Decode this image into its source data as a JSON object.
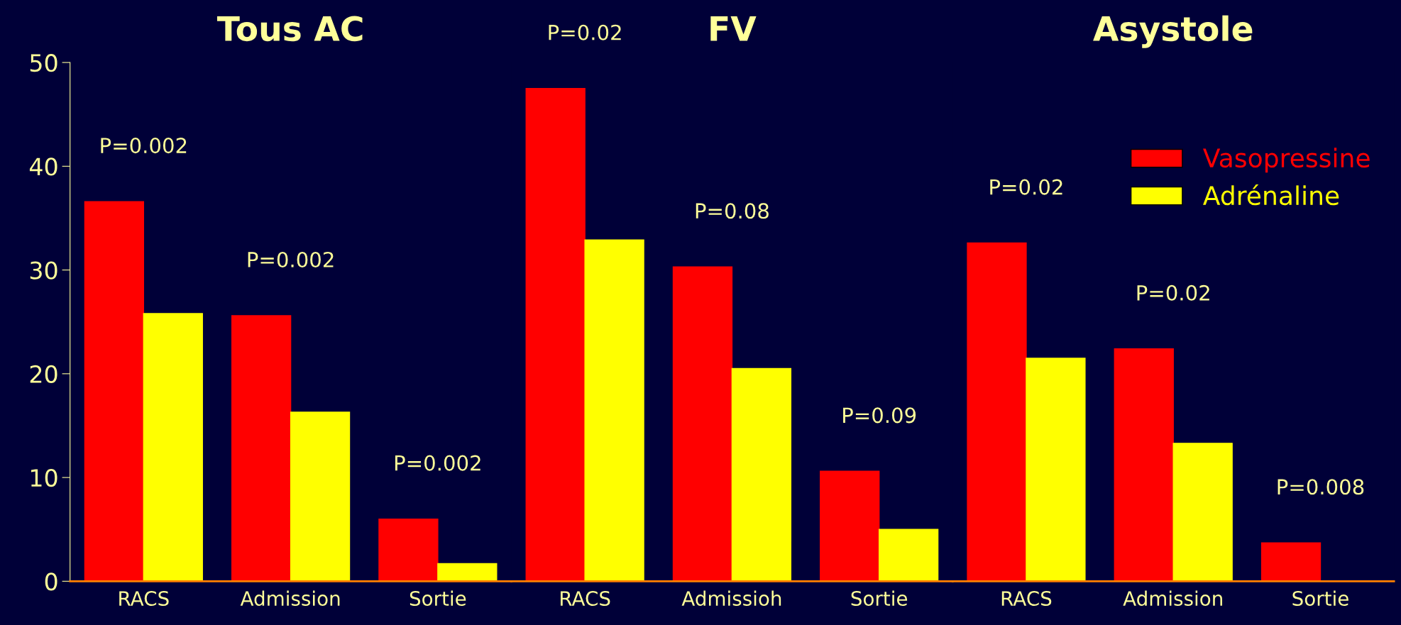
{
  "chart_data": [
    {
      "type": "bar",
      "title": "Tous AC",
      "categories": [
        "RACS",
        "Admission",
        "Sortie"
      ],
      "ylim": [
        0,
        50
      ],
      "yticks": [
        0,
        10,
        20,
        30,
        40,
        50
      ],
      "grid": false,
      "series": [
        {
          "color": "#ff0000",
          "values": [
            36.6,
            25.6,
            6.0
          ]
        },
        {
          "color": "#ffff00",
          "values": [
            25.8,
            16.3,
            1.7
          ]
        }
      ],
      "annotations": [
        "P=0.002",
        "P=0.002",
        "P=0.002"
      ]
    },
    {
      "type": "bar",
      "title": "FV",
      "categories": [
        "RACS",
        "Admissioh",
        "Sortie"
      ],
      "ylim": [
        0,
        50
      ],
      "yticks": [
        0,
        10,
        20,
        30,
        40,
        50
      ],
      "grid": false,
      "tick_labels": "x",
      "series": [
        {
          "color": "#ff0000",
          "values": [
            47.5,
            30.3,
            10.6
          ]
        },
        {
          "color": "#ffff00",
          "values": [
            32.9,
            20.5,
            5.0
          ]
        }
      ],
      "annotations": [
        "P=0.02",
        "P=0.08",
        "P=0.09"
      ]
    },
    {
      "type": "bar",
      "title": "Asystole",
      "categories": [
        "RACS",
        "Admission",
        "Sortie"
      ],
      "ylim": [
        0,
        50
      ],
      "yticks": [
        0,
        10,
        20,
        30,
        40,
        50
      ],
      "grid": false,
      "legend": "top right",
      "tick_labels": "x",
      "series": [
        {
          "name": "Vasopressine",
          "color": "#ff0000",
          "values": [
            32.6,
            22.4,
            3.7
          ]
        },
        {
          "name": "Adrénaline",
          "color": "#ffff00",
          "values": [
            21.5,
            13.3,
            0
          ]
        }
      ],
      "annotations": [
        "P=0.02",
        "P=0.02",
        "P=0.008"
      ]
    }
  ]
}
